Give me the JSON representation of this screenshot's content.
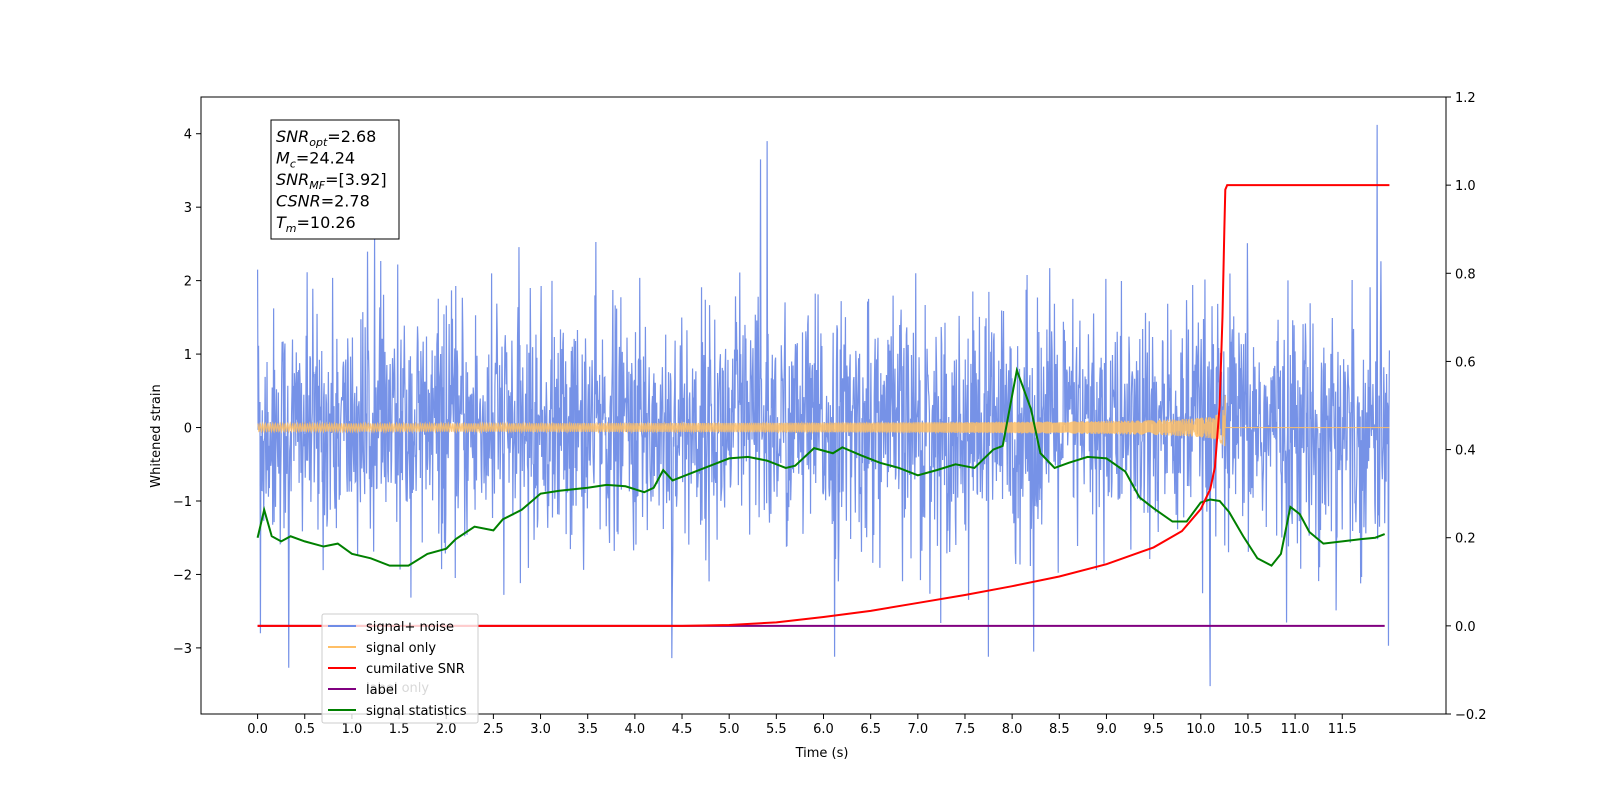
{
  "chart_data": {
    "type": "line",
    "xlabel": "Time (s)",
    "ylabel": "Whitened strain",
    "xlim": [
      -0.6,
      12.6
    ],
    "ylim": [
      -3.9,
      4.5
    ],
    "y2lim": [
      -0.2,
      1.2
    ],
    "x_ticks": [
      "0.0",
      "0.5",
      "1.0",
      "1.5",
      "2.0",
      "2.5",
      "3.0",
      "3.5",
      "4.0",
      "4.5",
      "5.0",
      "5.5",
      "6.0",
      "6.5",
      "7.0",
      "7.5",
      "8.0",
      "8.5",
      "9.0",
      "9.5",
      "10.0",
      "10.5",
      "11.0",
      "11.5"
    ],
    "y_ticks": [
      "4",
      "3",
      "2",
      "1",
      "0",
      "−1",
      "−2",
      "−3"
    ],
    "y2_ticks": [
      "1.2",
      "1.0",
      "0.8",
      "0.6",
      "0.4",
      "0.2",
      "0.0",
      "−0.2"
    ],
    "annotation": {
      "lines": [
        {
          "base": "SNR",
          "sub": "opt",
          "rest": "=2.68"
        },
        {
          "base": "M",
          "sub": "c",
          "rest": "=24.24"
        },
        {
          "base": "SNR",
          "sub": "MF",
          "rest": "=[3.92]"
        },
        {
          "base": "CSNR",
          "sub": "",
          "rest": "=2.78"
        },
        {
          "base": "T",
          "sub": "m",
          "rest": "=10.26"
        }
      ]
    },
    "legend": {
      "position": "lower-left",
      "entries": [
        {
          "label": "signal+ noise",
          "color": "#6f8ce6"
        },
        {
          "label": "signal only",
          "color": "#ffbf66"
        },
        {
          "label": "cumilative SNR",
          "color": "#ff0000"
        },
        {
          "label": "label",
          "color": "#800080"
        },
        {
          "label": "signal statistics",
          "color": "#008000"
        }
      ],
      "hidden_label": "label only"
    },
    "series": [
      {
        "name": "signal+ noise",
        "axis": "left",
        "color": "#6f8ce6",
        "description": "dense whitened strain noise",
        "t_range": [
          0.0,
          12.0
        ],
        "amplitude_std": 0.8,
        "peaks": [
          [
            0.0,
            2.15
          ],
          [
            0.03,
            -2.8
          ],
          [
            0.33,
            -3.27
          ],
          [
            4.39,
            -3.14
          ],
          [
            5.33,
            3.65
          ],
          [
            5.4,
            3.9
          ],
          [
            6.12,
            -3.12
          ],
          [
            7.75,
            -3.12
          ],
          [
            8.23,
            -3.05
          ],
          [
            10.1,
            -3.52
          ],
          [
            11.87,
            4.12
          ],
          [
            11.99,
            -2.97
          ]
        ]
      },
      {
        "name": "signal only",
        "axis": "left",
        "color": "#ffbf66",
        "description": "chirp waveform",
        "t_range": [
          0.0,
          10.26
        ],
        "merger_time": 10.26,
        "peak_amplitude": 0.5
      },
      {
        "name": "cumilative SNR",
        "axis": "right",
        "points": [
          [
            0.0,
            0.0
          ],
          [
            4.0,
            0.0
          ],
          [
            4.5,
            0.0
          ],
          [
            5.0,
            0.002
          ],
          [
            5.5,
            0.008
          ],
          [
            6.0,
            0.02
          ],
          [
            6.5,
            0.034
          ],
          [
            7.0,
            0.052
          ],
          [
            7.5,
            0.07
          ],
          [
            8.0,
            0.09
          ],
          [
            8.5,
            0.112
          ],
          [
            9.0,
            0.14
          ],
          [
            9.5,
            0.178
          ],
          [
            9.8,
            0.215
          ],
          [
            10.0,
            0.265
          ],
          [
            10.1,
            0.31
          ],
          [
            10.15,
            0.36
          ],
          [
            10.2,
            0.5
          ],
          [
            10.23,
            0.7
          ],
          [
            10.25,
            0.9
          ],
          [
            10.26,
            0.99
          ],
          [
            10.28,
            1.0
          ],
          [
            12.0,
            1.0
          ]
        ],
        "color": "#ff0000"
      },
      {
        "name": "label",
        "axis": "right",
        "points": [
          [
            0.0,
            0.0
          ],
          [
            11.95,
            0.0
          ]
        ],
        "color": "#800080"
      },
      {
        "name": "signal statistics",
        "axis": "left",
        "color": "#008000",
        "points": [
          [
            0.0,
            -1.5
          ],
          [
            0.07,
            -1.12
          ],
          [
            0.15,
            -1.48
          ],
          [
            0.25,
            -1.55
          ],
          [
            0.35,
            -1.48
          ],
          [
            0.5,
            -1.55
          ],
          [
            0.7,
            -1.62
          ],
          [
            0.85,
            -1.58
          ],
          [
            1.0,
            -1.72
          ],
          [
            1.2,
            -1.78
          ],
          [
            1.4,
            -1.88
          ],
          [
            1.6,
            -1.88
          ],
          [
            1.8,
            -1.72
          ],
          [
            2.0,
            -1.65
          ],
          [
            2.1,
            -1.52
          ],
          [
            2.3,
            -1.35
          ],
          [
            2.5,
            -1.4
          ],
          [
            2.6,
            -1.25
          ],
          [
            2.8,
            -1.12
          ],
          [
            3.0,
            -0.9
          ],
          [
            3.2,
            -0.86
          ],
          [
            3.5,
            -0.82
          ],
          [
            3.7,
            -0.78
          ],
          [
            3.9,
            -0.8
          ],
          [
            4.1,
            -0.88
          ],
          [
            4.2,
            -0.82
          ],
          [
            4.3,
            -0.58
          ],
          [
            4.4,
            -0.72
          ],
          [
            4.6,
            -0.62
          ],
          [
            4.8,
            -0.52
          ],
          [
            5.0,
            -0.42
          ],
          [
            5.2,
            -0.4
          ],
          [
            5.4,
            -0.45
          ],
          [
            5.6,
            -0.55
          ],
          [
            5.7,
            -0.52
          ],
          [
            5.9,
            -0.28
          ],
          [
            6.1,
            -0.35
          ],
          [
            6.2,
            -0.27
          ],
          [
            6.4,
            -0.38
          ],
          [
            6.6,
            -0.48
          ],
          [
            6.8,
            -0.55
          ],
          [
            7.0,
            -0.65
          ],
          [
            7.2,
            -0.58
          ],
          [
            7.4,
            -0.5
          ],
          [
            7.6,
            -0.55
          ],
          [
            7.8,
            -0.3
          ],
          [
            7.9,
            -0.25
          ],
          [
            8.05,
            0.78
          ],
          [
            8.2,
            0.25
          ],
          [
            8.3,
            -0.35
          ],
          [
            8.45,
            -0.55
          ],
          [
            8.6,
            -0.48
          ],
          [
            8.8,
            -0.4
          ],
          [
            9.0,
            -0.42
          ],
          [
            9.2,
            -0.6
          ],
          [
            9.35,
            -0.95
          ],
          [
            9.5,
            -1.1
          ],
          [
            9.7,
            -1.28
          ],
          [
            9.85,
            -1.28
          ],
          [
            10.0,
            -1.02
          ],
          [
            10.1,
            -0.98
          ],
          [
            10.2,
            -1.0
          ],
          [
            10.3,
            -1.15
          ],
          [
            10.45,
            -1.48
          ],
          [
            10.6,
            -1.78
          ],
          [
            10.75,
            -1.88
          ],
          [
            10.85,
            -1.72
          ],
          [
            10.95,
            -1.08
          ],
          [
            11.05,
            -1.18
          ],
          [
            11.15,
            -1.42
          ],
          [
            11.3,
            -1.58
          ],
          [
            11.5,
            -1.55
          ],
          [
            11.7,
            -1.52
          ],
          [
            11.85,
            -1.5
          ],
          [
            11.95,
            -1.45
          ]
        ]
      }
    ]
  }
}
